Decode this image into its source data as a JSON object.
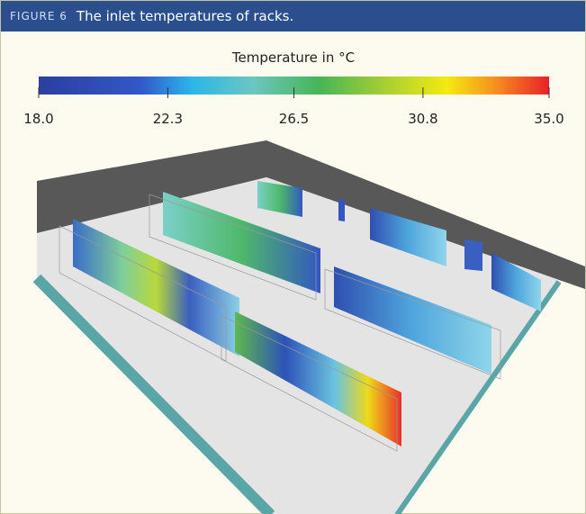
{
  "figure": {
    "label": "FIGURE 6",
    "title": "The inlet temperatures of racks."
  },
  "colorbar": {
    "label": "Temperature in °C",
    "lim": [
      18,
      35
    ],
    "ticks": [
      {
        "value": 18,
        "label": "18.0"
      },
      {
        "value": 22.3,
        "label": "22.3"
      },
      {
        "value": 26.5,
        "label": "26.5"
      },
      {
        "value": 30.8,
        "label": "30.8"
      },
      {
        "value": 35,
        "label": "35.0"
      }
    ]
  }
}
